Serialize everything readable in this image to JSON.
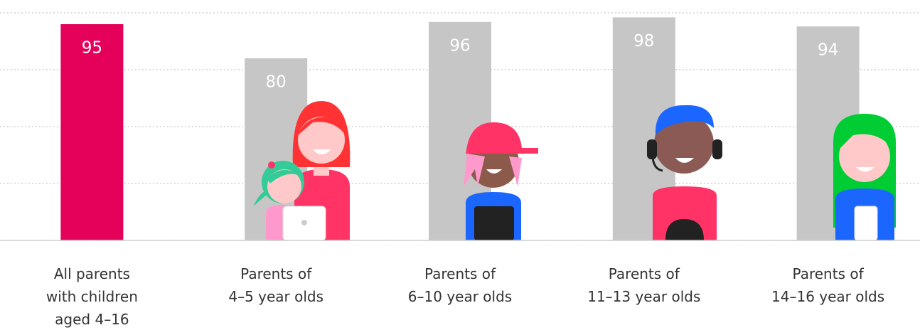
{
  "chart_data": {
    "type": "bar",
    "categories": [
      [
        "All parents",
        "with children",
        "aged 4–16"
      ],
      [
        "Parents of",
        "4–5 year olds"
      ],
      [
        "Parents of",
        "6–10 year olds"
      ],
      [
        "Parents of",
        "11–13 year olds"
      ],
      [
        "Parents of",
        "14–16 year olds"
      ]
    ],
    "values": [
      95,
      80,
      96,
      98,
      94
    ],
    "colors": [
      "#e5005a",
      "#c6c6c6",
      "#c6c6c6",
      "#c6c6c6",
      "#c6c6c6"
    ],
    "ylim": [
      0,
      100
    ],
    "yticks": [
      0,
      25,
      50,
      75,
      100
    ],
    "grid": true
  }
}
